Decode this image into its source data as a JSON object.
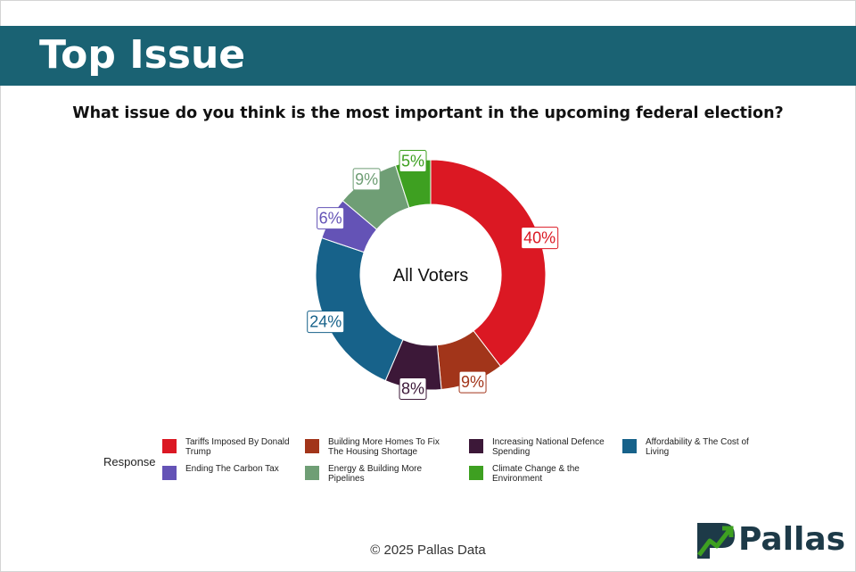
{
  "header": {
    "title": "Top Issue"
  },
  "question": "What issue do you think is the most important in the upcoming federal election?",
  "footer": {
    "copyright": "© 2025 Pallas Data"
  },
  "logo": {
    "text": "Pallas"
  },
  "legend": {
    "title": "Response"
  },
  "colors": {
    "header_bg": "#1a6273"
  },
  "chart_data": {
    "type": "pie",
    "center_label": "All Voters",
    "legend_title": "Response",
    "legend_placement": "bottom",
    "slices": [
      {
        "label": "Tariffs Imposed By Donald Trump",
        "value": 40,
        "display": "40%",
        "color": "#db1823"
      },
      {
        "label": "Building More Homes To Fix The Housing Shortage",
        "value": 9,
        "display": "9%",
        "color": "#a2351a"
      },
      {
        "label": "Increasing National Defence Spending",
        "value": 8,
        "display": "8%",
        "color": "#3c1838"
      },
      {
        "label": "Affordability & The Cost of Living",
        "value": 24,
        "display": "24%",
        "color": "#17628a"
      },
      {
        "label": "Ending The Carbon Tax",
        "value": 6,
        "display": "6%",
        "color": "#6453b6"
      },
      {
        "label": "Energy & Building More Pipelines",
        "value": 9,
        "display": "9%",
        "color": "#6f9e75"
      },
      {
        "label": "Climate Change & the Environment",
        "value": 5,
        "display": "5%",
        "color": "#3ea021"
      }
    ]
  }
}
